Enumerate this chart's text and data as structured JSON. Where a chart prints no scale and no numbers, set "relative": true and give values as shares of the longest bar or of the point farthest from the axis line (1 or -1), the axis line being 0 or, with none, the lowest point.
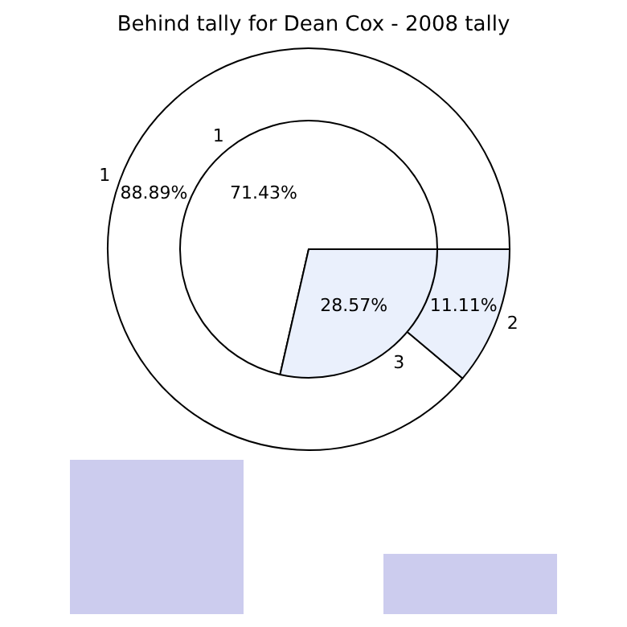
{
  "chart_data": [
    {
      "type": "pie",
      "title": "Behind tally for Dean Cox - 2008 tally",
      "categories": [
        "1",
        "2"
      ],
      "values": [
        88.89,
        11.11
      ],
      "colors": [
        "#ffffff",
        "#eaf0fc"
      ],
      "value_labels": [
        "88.89%",
        "11.11%"
      ]
    },
    {
      "type": "pie",
      "categories": [
        "1",
        "3"
      ],
      "values": [
        71.43,
        28.57
      ],
      "colors": [
        "#ffffff",
        "#eaf0fc"
      ],
      "value_labels": [
        "71.43%",
        "28.57%"
      ]
    },
    {
      "type": "bar",
      "relative": true,
      "categories": [
        null,
        null
      ],
      "values": [
        1,
        0.39
      ],
      "color": "#ccccee"
    }
  ]
}
